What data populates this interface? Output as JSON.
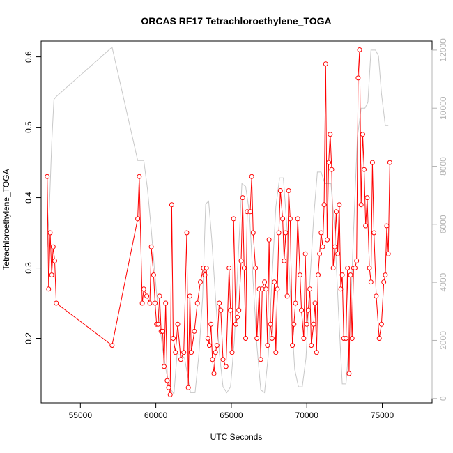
{
  "chart_data": {
    "type": "line",
    "title": "ORCAS RF17 Tetrachloroethylene_TOGA",
    "xlabel": "UTC Seconds",
    "ylabel": "Tetrachloroethylene_TOGA",
    "xlim": [
      52400,
      78300
    ],
    "ylim": [
      0.1084,
      0.6224
    ],
    "y2lim": [
      -150,
      12310
    ],
    "x_ticks": [
      55000,
      60000,
      65000,
      70000,
      75000
    ],
    "x_tick_labels": [
      "55000",
      "60000",
      "65000",
      "70000",
      "75000"
    ],
    "y_ticks": [
      0.2,
      0.3,
      0.4,
      0.5,
      0.6
    ],
    "y_tick_labels": [
      "0.2",
      "0.3",
      "0.4",
      "0.5",
      "0.6"
    ],
    "y2_ticks": [
      0,
      2000,
      4000,
      6000,
      8000,
      10000,
      12000
    ],
    "y2_tick_labels": [
      "0",
      "2000",
      "4000",
      "6000",
      "8000",
      "10000",
      "12000"
    ],
    "colors": {
      "series": "#ff0000",
      "altitude": "#c8c8c8",
      "axis": "#000000",
      "secondary_axis": "#b4b4b4"
    },
    "series": [
      {
        "axis": "left",
        "style": "line+open-circles",
        "color": "#ff0000",
        "points": [
          [
            52800,
            0.43
          ],
          [
            52900,
            0.27
          ],
          [
            53000,
            0.35
          ],
          [
            53100,
            0.29
          ],
          [
            53200,
            0.33
          ],
          [
            53300,
            0.31
          ],
          [
            53400,
            0.25
          ],
          [
            57100,
            0.19
          ],
          [
            58800,
            0.37
          ],
          [
            58900,
            0.43
          ],
          [
            59100,
            0.25
          ],
          [
            59200,
            0.27
          ],
          [
            59400,
            0.26
          ],
          [
            59600,
            0.25
          ],
          [
            59700,
            0.33
          ],
          [
            59850,
            0.29
          ],
          [
            59950,
            0.25
          ],
          [
            60050,
            0.22
          ],
          [
            60150,
            0.22
          ],
          [
            60250,
            0.26
          ],
          [
            60350,
            0.21
          ],
          [
            60450,
            0.21
          ],
          [
            60550,
            0.16
          ],
          [
            60650,
            0.25
          ],
          [
            60750,
            0.14
          ],
          [
            60850,
            0.13
          ],
          [
            60950,
            0.12
          ],
          [
            61050,
            0.39
          ],
          [
            61150,
            0.2
          ],
          [
            61300,
            0.18
          ],
          [
            61450,
            0.22
          ],
          [
            61650,
            0.17
          ],
          [
            61850,
            0.18
          ],
          [
            62050,
            0.35
          ],
          [
            62150,
            0.13
          ],
          [
            62250,
            0.26
          ],
          [
            62350,
            0.18
          ],
          [
            62550,
            0.21
          ],
          [
            62750,
            0.25
          ],
          [
            62950,
            0.28
          ],
          [
            63150,
            0.3
          ],
          [
            63250,
            0.29
          ],
          [
            63350,
            0.3
          ],
          [
            63450,
            0.2
          ],
          [
            63550,
            0.19
          ],
          [
            63650,
            0.22
          ],
          [
            63750,
            0.17
          ],
          [
            63850,
            0.15
          ],
          [
            63950,
            0.18
          ],
          [
            64050,
            0.19
          ],
          [
            64200,
            0.25
          ],
          [
            64300,
            0.24
          ],
          [
            64450,
            0.17
          ],
          [
            64650,
            0.16
          ],
          [
            64850,
            0.3
          ],
          [
            64950,
            0.24
          ],
          [
            65050,
            0.18
          ],
          [
            65150,
            0.37
          ],
          [
            65300,
            0.22
          ],
          [
            65400,
            0.23
          ],
          [
            65500,
            0.24
          ],
          [
            65650,
            0.31
          ],
          [
            65750,
            0.4
          ],
          [
            65850,
            0.3
          ],
          [
            65950,
            0.2
          ],
          [
            66050,
            0.38
          ],
          [
            66250,
            0.38
          ],
          [
            66350,
            0.43
          ],
          [
            66450,
            0.35
          ],
          [
            66600,
            0.3
          ],
          [
            66700,
            0.2
          ],
          [
            66850,
            0.27
          ],
          [
            66950,
            0.17
          ],
          [
            67050,
            0.27
          ],
          [
            67200,
            0.28
          ],
          [
            67300,
            0.27
          ],
          [
            67400,
            0.19
          ],
          [
            67500,
            0.34
          ],
          [
            67600,
            0.22
          ],
          [
            67700,
            0.2
          ],
          [
            67850,
            0.28
          ],
          [
            67950,
            0.18
          ],
          [
            68050,
            0.27
          ],
          [
            68150,
            0.35
          ],
          [
            68250,
            0.41
          ],
          [
            68400,
            0.37
          ],
          [
            68500,
            0.31
          ],
          [
            68600,
            0.35
          ],
          [
            68700,
            0.26
          ],
          [
            68800,
            0.41
          ],
          [
            68900,
            0.37
          ],
          [
            69050,
            0.19
          ],
          [
            69150,
            0.22
          ],
          [
            69250,
            0.25
          ],
          [
            69400,
            0.37
          ],
          [
            69550,
            0.29
          ],
          [
            69650,
            0.24
          ],
          [
            69800,
            0.2
          ],
          [
            69900,
            0.32
          ],
          [
            70000,
            0.22
          ],
          [
            70100,
            0.24
          ],
          [
            70200,
            0.27
          ],
          [
            70300,
            0.19
          ],
          [
            70450,
            0.22
          ],
          [
            70550,
            0.25
          ],
          [
            70650,
            0.18
          ],
          [
            70750,
            0.29
          ],
          [
            70850,
            0.32
          ],
          [
            70950,
            0.35
          ],
          [
            71050,
            0.33
          ],
          [
            71150,
            0.39
          ],
          [
            71250,
            0.59
          ],
          [
            71350,
            0.34
          ],
          [
            71450,
            0.45
          ],
          [
            71550,
            0.49
          ],
          [
            71650,
            0.44
          ],
          [
            71750,
            0.3
          ],
          [
            71850,
            0.33
          ],
          [
            71950,
            0.38
          ],
          [
            72050,
            0.32
          ],
          [
            72150,
            0.39
          ],
          [
            72250,
            0.27
          ],
          [
            72350,
            0.29
          ],
          [
            72450,
            0.2
          ],
          [
            72600,
            0.2
          ],
          [
            72700,
            0.3
          ],
          [
            72800,
            0.15
          ],
          [
            72900,
            0.29
          ],
          [
            73000,
            0.2
          ],
          [
            73100,
            0.3
          ],
          [
            73200,
            0.3
          ],
          [
            73300,
            0.31
          ],
          [
            73400,
            0.57
          ],
          [
            73500,
            0.61
          ],
          [
            73600,
            0.39
          ],
          [
            73700,
            0.49
          ],
          [
            73800,
            0.44
          ],
          [
            73900,
            0.36
          ],
          [
            74000,
            0.4
          ],
          [
            74150,
            0.3
          ],
          [
            74250,
            0.28
          ],
          [
            74350,
            0.45
          ],
          [
            74450,
            0.35
          ],
          [
            74600,
            0.26
          ],
          [
            74800,
            0.2
          ],
          [
            74950,
            0.22
          ],
          [
            75100,
            0.28
          ],
          [
            75200,
            0.29
          ],
          [
            75300,
            0.36
          ],
          [
            75400,
            0.32
          ],
          [
            75500,
            0.45
          ]
        ]
      },
      {
        "axis": "right",
        "style": "line",
        "color": "#c8c8c8",
        "points": [
          [
            52800,
            5200
          ],
          [
            52950,
            6600
          ],
          [
            53100,
            8800
          ],
          [
            53250,
            10300
          ],
          [
            53400,
            10400
          ],
          [
            57100,
            12100
          ],
          [
            58800,
            8200
          ],
          [
            59200,
            8200
          ],
          [
            59450,
            7200
          ],
          [
            59700,
            5800
          ],
          [
            59950,
            4200
          ],
          [
            60200,
            2800
          ],
          [
            60450,
            1700
          ],
          [
            60700,
            900
          ],
          [
            60950,
            350
          ],
          [
            61200,
            150
          ],
          [
            61400,
            1500
          ],
          [
            61600,
            1500
          ],
          [
            61900,
            1400
          ],
          [
            62100,
            800
          ],
          [
            62300,
            200
          ],
          [
            62600,
            200
          ],
          [
            62850,
            1500
          ],
          [
            63100,
            3500
          ],
          [
            63300,
            6700
          ],
          [
            63500,
            6800
          ],
          [
            63700,
            5500
          ],
          [
            63950,
            3500
          ],
          [
            64200,
            1600
          ],
          [
            64450,
            400
          ],
          [
            64700,
            200
          ],
          [
            64950,
            400
          ],
          [
            65200,
            2000
          ],
          [
            65450,
            4800
          ],
          [
            65700,
            7400
          ],
          [
            65950,
            7300
          ],
          [
            66200,
            6400
          ],
          [
            66450,
            4000
          ],
          [
            66700,
            1800
          ],
          [
            66950,
            300
          ],
          [
            67200,
            200
          ],
          [
            67450,
            1500
          ],
          [
            67700,
            4200
          ],
          [
            67950,
            6600
          ],
          [
            68200,
            7600
          ],
          [
            68450,
            7600
          ],
          [
            68700,
            5800
          ],
          [
            68950,
            3200
          ],
          [
            69200,
            1000
          ],
          [
            69450,
            400
          ],
          [
            69700,
            400
          ],
          [
            69950,
            1400
          ],
          [
            70200,
            4000
          ],
          [
            70450,
            6200
          ],
          [
            70700,
            7800
          ],
          [
            70950,
            7800
          ],
          [
            71200,
            7400
          ],
          [
            71400,
            7400
          ],
          [
            71600,
            7400
          ],
          [
            71850,
            5800
          ],
          [
            72100,
            3000
          ],
          [
            72350,
            500
          ],
          [
            72600,
            500
          ],
          [
            72850,
            2300
          ],
          [
            73100,
            5800
          ],
          [
            73350,
            9000
          ],
          [
            73600,
            10000
          ],
          [
            73850,
            10000
          ],
          [
            74050,
            10200
          ],
          [
            74250,
            12000
          ],
          [
            74550,
            12000
          ],
          [
            74750,
            11800
          ],
          [
            74950,
            10500
          ],
          [
            75200,
            9400
          ],
          [
            75400,
            9400
          ]
        ]
      }
    ]
  }
}
